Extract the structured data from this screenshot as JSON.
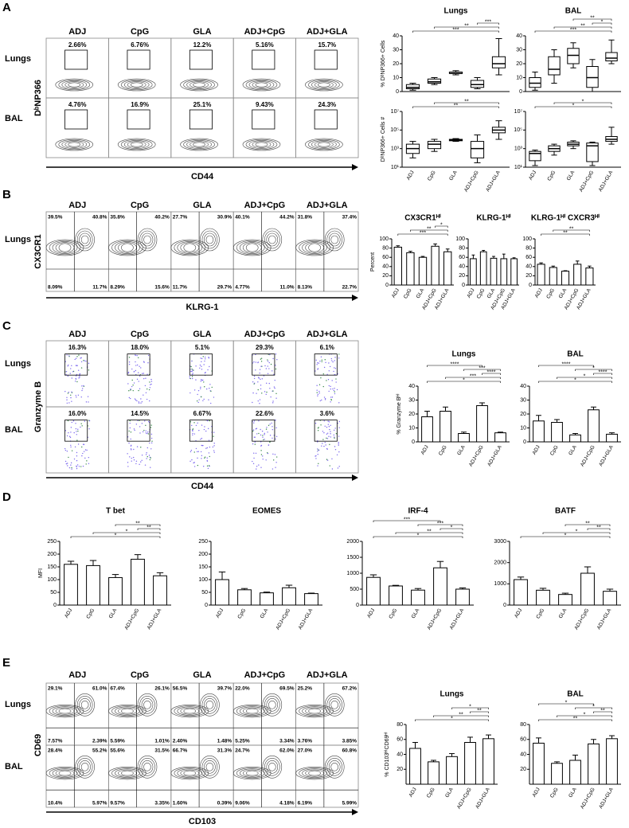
{
  "panels": [
    {
      "letter": "A",
      "flow": {
        "kind": "gate",
        "columns": [
          "ADJ",
          "CpG",
          "GLA",
          "ADJ+CpG",
          "ADJ+GLA"
        ],
        "rows": [
          "Lungs",
          "BAL"
        ],
        "y_label": "DᵇNP366",
        "x_label": "CD44",
        "gates": [
          [
            "2.66%",
            "6.76%",
            "12.2%",
            "5.16%",
            "15.7%"
          ],
          [
            "4.76%",
            "16.9%",
            "25.1%",
            "9.43%",
            "24.3%"
          ]
        ]
      },
      "charts": [
        {
          "type": "box",
          "title": "Lungs",
          "y_label": "% DᵇNP366+ Cells",
          "ylim": [
            0,
            40
          ],
          "yticks": [
            0,
            10,
            20,
            30,
            40
          ],
          "boxes": [
            [
              1,
              2,
              3,
              5,
              6
            ],
            [
              5,
              6,
              7,
              9,
              10
            ],
            [
              12,
              13,
              13,
              14,
              15
            ],
            [
              2,
              3,
              5,
              8,
              10
            ],
            [
              12,
              17,
              20,
              25,
              38
            ]
          ],
          "annotations": [
            "***",
            "**",
            "***"
          ]
        },
        {
          "type": "box",
          "title": "BAL",
          "ylim": [
            0,
            40
          ],
          "yticks": [
            0,
            10,
            20,
            30,
            40
          ],
          "boxes": [
            [
              1,
              3,
              6,
              10,
              14
            ],
            [
              6,
              12,
              16,
              25,
              30
            ],
            [
              17,
              20,
              26,
              31,
              35
            ],
            [
              0,
              3,
              10,
              18,
              23
            ],
            [
              20,
              22,
              24,
              28,
              37
            ]
          ],
          "annotations": [
            "***",
            "**",
            "*",
            "**"
          ]
        },
        {
          "type": "box",
          "y_label": "DᵇNP366+ Cells #",
          "log": true,
          "ylim": [
            10,
            10000000
          ],
          "yticks": [
            {
              "value": 10,
              "label": "10¹"
            },
            {
              "value": 1000,
              "label": "10³"
            },
            {
              "value": 100000,
              "label": "10⁵"
            },
            {
              "value": 10000000,
              "label": "10⁷"
            }
          ],
          "categories": [
            "ADJ",
            "CpG",
            "GLA",
            "ADJ+CpG",
            "ADJ+GLA"
          ],
          "boxes": [
            [
              100,
              300,
              1000,
              3000,
              6000
            ],
            [
              500,
              1000,
              3000,
              6000,
              10000
            ],
            [
              6000,
              7000,
              8000,
              10000,
              12000
            ],
            [
              30,
              100,
              1000,
              6000,
              30000
            ],
            [
              10000,
              50000,
              100000,
              200000,
              1000000
            ]
          ],
          "annotations": [
            "**",
            "**"
          ]
        },
        {
          "type": "box",
          "log": true,
          "ylim": [
            10,
            10000000
          ],
          "yticks": [
            {
              "value": 10,
              "label": "10¹"
            },
            {
              "value": 1000,
              "label": "10³"
            },
            {
              "value": 100000,
              "label": "10⁵"
            },
            {
              "value": 10000000,
              "label": "10⁷"
            }
          ],
          "categories": [
            "ADJ",
            "CpG",
            "GLA",
            "ADJ+CpG",
            "ADJ+GLA"
          ],
          "boxes": [
            [
              15,
              50,
              300,
              500,
              700
            ],
            [
              200,
              500,
              1000,
              2000,
              3000
            ],
            [
              1000,
              2000,
              3000,
              5000,
              7000
            ],
            [
              15,
              40,
              2000,
              4000,
              5000
            ],
            [
              3000,
              6000,
              10000,
              20000,
              200000
            ]
          ],
          "annotations": [
            "*",
            "*"
          ]
        }
      ]
    },
    {
      "letter": "B",
      "flow": {
        "kind": "quadrant",
        "columns": [
          "ADJ",
          "CpG",
          "GLA",
          "ADJ+CpG",
          "ADJ+GLA"
        ],
        "rows": [
          "Lungs"
        ],
        "y_label": "CX3CR1",
        "x_label": "KLRG-1",
        "quadrants": [
          [
            [
              "39.5%",
              "40.8%",
              "8.09%",
              "11.7%"
            ],
            [
              "35.8%",
              "40.2%",
              "8.29%",
              "15.6%"
            ],
            [
              "27.7%",
              "30.9%",
              "11.7%",
              "29.7%"
            ],
            [
              "40.1%",
              "44.2%",
              "4.77%",
              "11.0%"
            ],
            [
              "31.8%",
              "37.4%",
              "8.13%",
              "22.7%"
            ]
          ]
        ]
      },
      "charts": [
        {
          "type": "bar",
          "title": "CX3CR1ᴴⁱ",
          "y_label": "Percent",
          "ylim": [
            0,
            100
          ],
          "yticks": [
            0,
            20,
            40,
            60,
            80,
            100
          ],
          "categories": [
            "ADJ",
            "CpG",
            "GLA",
            "ADJ+CpG",
            "ADJ+GLA"
          ],
          "values": [
            82,
            70,
            60,
            84,
            72
          ],
          "errors": [
            3,
            3,
            2,
            5,
            6
          ],
          "annotations": [
            "***",
            "**",
            "*"
          ]
        },
        {
          "type": "bar",
          "title": "KLRG-1ᴴⁱ",
          "ylim": [
            0,
            100
          ],
          "yticks": [
            0,
            20,
            40,
            60,
            80,
            100
          ],
          "categories": [
            "ADJ",
            "CpG",
            "GLA",
            "ADJ+CpG",
            "ADJ+GLA"
          ],
          "values": [
            57,
            72,
            58,
            57,
            57
          ],
          "errors": [
            8,
            3,
            4,
            10,
            2
          ]
        },
        {
          "type": "bar",
          "title": "KLRG-1ᴴⁱ CXCR3ᴴⁱ",
          "ylim": [
            0,
            100
          ],
          "yticks": [
            0,
            20,
            40,
            60,
            80,
            100
          ],
          "categories": [
            "ADJ",
            "CpG",
            "GLA",
            "ADJ+CpG",
            "ADJ+GLA"
          ],
          "values": [
            45,
            38,
            30,
            45,
            37
          ],
          "errors": [
            3,
            3,
            1,
            7,
            4
          ],
          "annotations": [
            "**",
            "**"
          ]
        }
      ]
    },
    {
      "letter": "C",
      "flow": {
        "kind": "gate",
        "columns": [
          "ADJ",
          "CpG",
          "GLA",
          "ADJ+CpG",
          "ADJ+GLA"
        ],
        "rows": [
          "Lungs",
          "BAL"
        ],
        "y_label": "Granzyme B",
        "x_label": "CD44",
        "gates": [
          [
            "16.3%",
            "18.0%",
            "5.1%",
            "29.3%",
            "6.1%"
          ],
          [
            "16.0%",
            "14.5%",
            "6.67%",
            "22.6%",
            "3.6%"
          ]
        ]
      },
      "charts": [
        {
          "type": "bar",
          "title": "Lungs",
          "y_label": "% Granzyme Bᴴⁱ",
          "ylim": [
            0,
            40
          ],
          "yticks": [
            0,
            10,
            20,
            30,
            40
          ],
          "categories": [
            "ADJ",
            "CpG",
            "GLA",
            "ADJ+CpG",
            "ADJ+GLA"
          ],
          "values": [
            18,
            22,
            6,
            26,
            6.5
          ],
          "errors": [
            4,
            3,
            1,
            2,
            0.5
          ],
          "annotations": [
            "*",
            "***",
            "****",
            "***",
            "****"
          ]
        },
        {
          "type": "bar",
          "title": "BAL",
          "ylim": [
            0,
            40
          ],
          "yticks": [
            0,
            10,
            20,
            30,
            40
          ],
          "categories": [
            "ADJ",
            "CpG",
            "GLA",
            "ADJ+CpG",
            "ADJ+GLA"
          ],
          "values": [
            15,
            14,
            5,
            23,
            5.5
          ],
          "errors": [
            4,
            2,
            1,
            2,
            1
          ],
          "annotations": [
            "*",
            "*",
            "****",
            "*",
            "****"
          ]
        }
      ]
    },
    {
      "letter": "D",
      "charts": [
        {
          "type": "bar",
          "title": "T bet",
          "y_label": "MFI",
          "ylim": [
            0,
            250
          ],
          "yticks": [
            0,
            50,
            100,
            150,
            200,
            250
          ],
          "categories": [
            "ADJ",
            "CpG",
            "GLA",
            "ADJ+CpG",
            "ADJ+GLA"
          ],
          "values": [
            160,
            155,
            108,
            180,
            115
          ],
          "errors": [
            12,
            20,
            12,
            18,
            12
          ],
          "annotations": [
            "*",
            "*",
            "**",
            "**"
          ]
        },
        {
          "type": "bar",
          "title": "EOMES",
          "ylim": [
            0,
            250
          ],
          "yticks": [
            0,
            50,
            100,
            150,
            200,
            250
          ],
          "categories": [
            "ADJ",
            "CpG",
            "GLA",
            "ADJ+CpG",
            "ADJ+GLA"
          ],
          "values": [
            100,
            60,
            48,
            68,
            45
          ],
          "errors": [
            30,
            5,
            3,
            10,
            2
          ]
        },
        {
          "type": "bar",
          "title": "IRF-4",
          "ylim": [
            0,
            2000
          ],
          "yticks": [
            0,
            500,
            1000,
            1500,
            2000
          ],
          "categories": [
            "ADJ",
            "CpG",
            "GLA",
            "ADJ+CpG",
            "ADJ+GLA"
          ],
          "values": [
            870,
            600,
            470,
            1170,
            500
          ],
          "errors": [
            80,
            20,
            50,
            200,
            40
          ],
          "annotations": [
            "*",
            "**",
            "*",
            "***",
            "***"
          ]
        },
        {
          "type": "bar",
          "title": "BATF",
          "ylim": [
            0,
            3000
          ],
          "yticks": [
            0,
            1000,
            2000,
            3000
          ],
          "categories": [
            "ADJ",
            "CpG",
            "GLA",
            "ADJ+CpG",
            "ADJ+GLA"
          ],
          "values": [
            1200,
            700,
            500,
            1500,
            650
          ],
          "errors": [
            120,
            90,
            60,
            300,
            100
          ],
          "annotations": [
            "*",
            "*",
            "**",
            "**"
          ]
        }
      ]
    },
    {
      "letter": "E",
      "flow": {
        "kind": "quadrant",
        "columns": [
          "ADJ",
          "CpG",
          "GLA",
          "ADJ+CpG",
          "ADJ+GLA"
        ],
        "rows": [
          "Lungs",
          "BAL"
        ],
        "y_label": "CD69",
        "x_label": "CD103",
        "quadrants": [
          [
            [
              "29.1%",
              "61.0%",
              "7.57%",
              "2.39%"
            ],
            [
              "67.4%",
              "26.1%",
              "5.59%",
              "1.01%"
            ],
            [
              "56.5%",
              "39.7%",
              "2.40%",
              "1.48%"
            ],
            [
              "22.0%",
              "69.5%",
              "5.25%",
              "3.34%"
            ],
            [
              "25.2%",
              "67.2%",
              "3.76%",
              "3.85%"
            ]
          ],
          [
            [
              "28.4%",
              "55.2%",
              "10.4%",
              "5.97%"
            ],
            [
              "55.6%",
              "31.5%",
              "9.57%",
              "3.35%"
            ],
            [
              "66.7%",
              "31.3%",
              "1.60%",
              "0.39%"
            ],
            [
              "24.7%",
              "62.0%",
              "9.06%",
              "4.18%"
            ],
            [
              "27.0%",
              "60.8%",
              "6.19%",
              "5.99%"
            ]
          ]
        ]
      },
      "charts": [
        {
          "type": "bar",
          "title": "Lungs",
          "y_label": "% CD103ᴴⁱCD69ᴴⁱ",
          "ylim": [
            0,
            80
          ],
          "yticks": [
            20,
            40,
            60,
            80
          ],
          "categories": [
            "ADJ",
            "CpG",
            "GLA",
            "ADJ+CpG",
            "ADJ+GLA"
          ],
          "values": [
            48,
            30,
            37,
            56,
            61
          ],
          "errors": [
            8,
            2,
            4,
            7,
            5
          ],
          "annotations": [
            "*",
            "**",
            "**",
            "*"
          ]
        },
        {
          "type": "bar",
          "title": "BAL",
          "ylim": [
            0,
            80
          ],
          "yticks": [
            20,
            40,
            60,
            80
          ],
          "categories": [
            "ADJ",
            "CpG",
            "GLA",
            "ADJ+CpG",
            "ADJ+GLA"
          ],
          "values": [
            55,
            28,
            32,
            54,
            61
          ],
          "errors": [
            7,
            2,
            7,
            6,
            4
          ],
          "annotations": [
            "**",
            "*",
            "**",
            "*",
            "*"
          ]
        }
      ]
    }
  ]
}
